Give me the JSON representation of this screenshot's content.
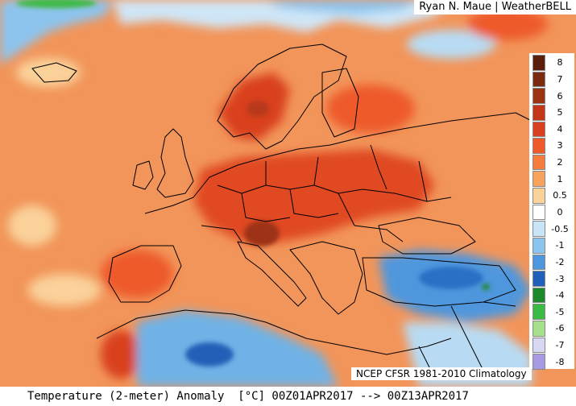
{
  "credit": "Ryan N. Maue | WeatherBELL",
  "source": "NCEP CFSR 1981-2010 Climatology",
  "footer": "Temperature (2-meter) Anomaly  [°C] 00Z01APR2017 --> 00Z13APR2017",
  "legend": {
    "labels": [
      "8",
      "7",
      "6",
      "5",
      "4",
      "3",
      "2",
      "1",
      "0.5",
      "0",
      "-0.5",
      "-1",
      "-2",
      "-3",
      "-4",
      "-5",
      "-6",
      "-7",
      "-8"
    ],
    "colors": [
      "#5a1e0a",
      "#7a2b10",
      "#9c3214",
      "#c3361a",
      "#d9401f",
      "#ee5a2a",
      "#f47c3e",
      "#f7a35e",
      "#fad29a",
      "#ffffff",
      "#c9e4f6",
      "#8cc4ee",
      "#4f97dd",
      "#2060b8",
      "#1c8a2c",
      "#3cba46",
      "#a6e08c",
      "#d8d8f2",
      "#a79ae0"
    ]
  },
  "palette": {
    "land_warm": "#f0894c",
    "anomaly_hot": "#d9401f",
    "anomaly_peak": "#9c3214",
    "anomaly_cool": "#4f97dd",
    "anomaly_cold": "#2060b8",
    "borders": "#000000"
  }
}
